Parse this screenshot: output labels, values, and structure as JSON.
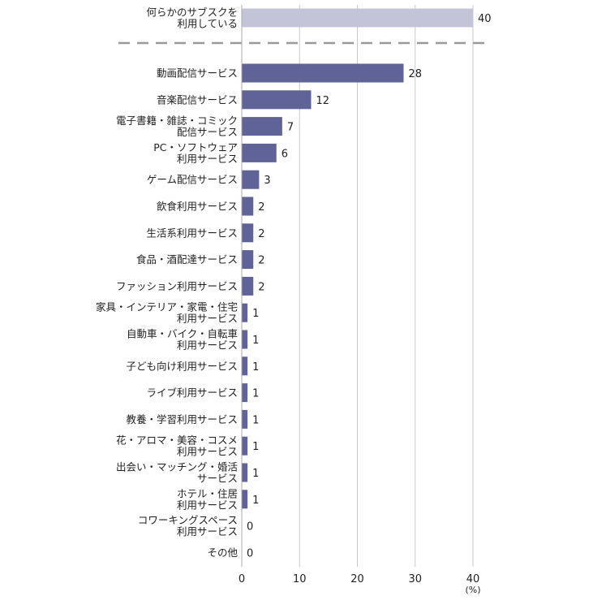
{
  "chart_data": {
    "type": "bar",
    "orientation": "horizontal",
    "title": "",
    "xlabel": "",
    "unit_label": "(%)",
    "xlim": [
      0,
      40
    ],
    "xticks": [
      0,
      10,
      20,
      30,
      40
    ],
    "grid": true,
    "colors": {
      "summary": "#c3c4d8",
      "items": "#5f6397",
      "grid": "#c8c8c8",
      "divider": "#999999"
    },
    "summary": {
      "label": [
        "何らかのサブスクを",
        "利用している"
      ],
      "value": 40
    },
    "categories": [
      [
        "動画配信サービス"
      ],
      [
        "音楽配信サービス"
      ],
      [
        "電子書籍・雑誌・コミック",
        "配信サービス"
      ],
      [
        "PC・ソフトウェア",
        "利用サービス"
      ],
      [
        "ゲーム配信サービス"
      ],
      [
        "飲食利用サービス"
      ],
      [
        "生活系利用サービス"
      ],
      [
        "食品・酒配達サービス"
      ],
      [
        "ファッション利用サービス"
      ],
      [
        "家具・インテリア・家電・住宅",
        "利用サービス"
      ],
      [
        "自動車・バイク・自転車",
        "利用サービス"
      ],
      [
        "子ども向け利用サービス"
      ],
      [
        "ライブ利用サービス"
      ],
      [
        "教養・学習利用サービス"
      ],
      [
        "花・アロマ・美容・コスメ",
        "利用サービス"
      ],
      [
        "出会い・マッチング・婚活",
        "サービス"
      ],
      [
        "ホテル・住居",
        "利用サービス"
      ],
      [
        "コワーキングスペース",
        "利用サービス"
      ],
      [
        "その他"
      ]
    ],
    "values": [
      28,
      12,
      7,
      6,
      3,
      2,
      2,
      2,
      2,
      1,
      1,
      1,
      1,
      1,
      1,
      1,
      1,
      0,
      0
    ]
  }
}
